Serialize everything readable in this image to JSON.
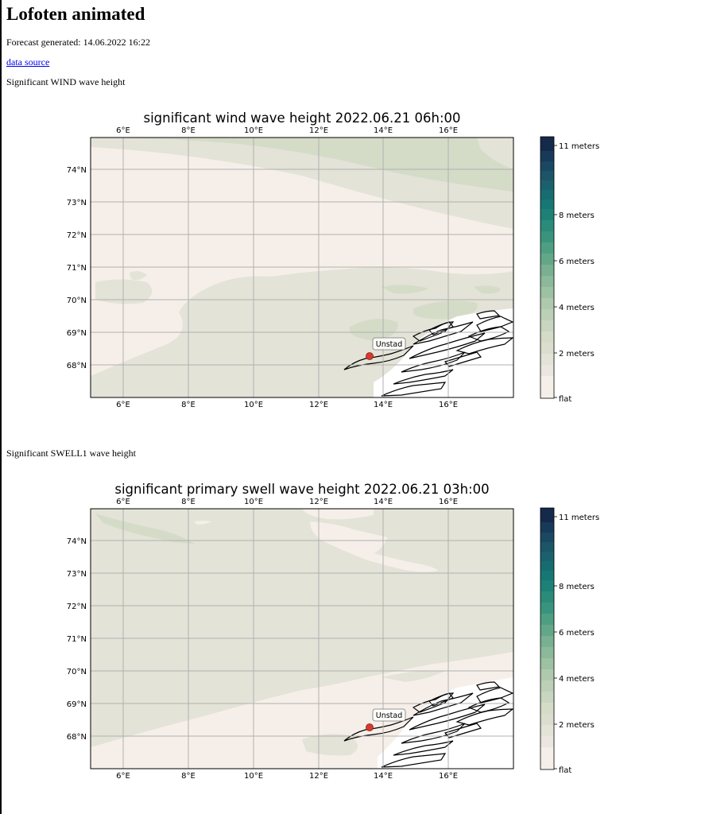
{
  "page": {
    "title": "Lofoten animated",
    "forecast_generated": "Forecast generated: 14.06.2022 16:22",
    "data_source_link": "data source"
  },
  "sections": [
    {
      "heading": "Significant WIND wave height",
      "chart_title": "significant wind wave height 2022.06.21 06h:00",
      "marker_label": "Unstad"
    },
    {
      "heading": "Significant SWELL1 wave height",
      "chart_title": "significant primary swell wave height 2022.06.21 03h:00",
      "marker_label": "Unstad"
    }
  ],
  "chart_data": [
    {
      "type": "heatmap",
      "title": "significant wind wave height 2022.06.21 06h:00",
      "x_ticks": [
        "6°E",
        "8°E",
        "10°E",
        "12°E",
        "14°E",
        "16°E"
      ],
      "y_ticks": [
        "74°N",
        "73°N",
        "72°N",
        "71°N",
        "70°N",
        "69°N",
        "68°N"
      ],
      "xlim": [
        5,
        18
      ],
      "ylim": [
        67,
        75
      ],
      "grid": true,
      "colorbar_labels": [
        "11 meters",
        "8 meters",
        "6 meters",
        "4 meters",
        "2 meters",
        "flat"
      ],
      "colorbar_values": [
        11,
        8,
        6,
        4,
        2,
        0
      ],
      "marker": {
        "label": "Unstad",
        "lon": 13.55,
        "lat": 68.27
      }
    },
    {
      "type": "heatmap",
      "title": "significant primary swell wave height 2022.06.21 03h:00",
      "x_ticks": [
        "6°E",
        "8°E",
        "10°E",
        "12°E",
        "14°E",
        "16°E"
      ],
      "y_ticks": [
        "74°N",
        "73°N",
        "72°N",
        "71°N",
        "70°N",
        "69°N",
        "68°N"
      ],
      "xlim": [
        5,
        18
      ],
      "ylim": [
        67,
        75
      ],
      "grid": true,
      "colorbar_labels": [
        "11 meters",
        "8 meters",
        "6 meters",
        "4 meters",
        "2 meters",
        "flat"
      ],
      "colorbar_values": [
        11,
        8,
        6,
        4,
        2,
        0
      ],
      "marker": {
        "label": "Unstad",
        "lon": 13.55,
        "lat": 68.27
      }
    }
  ],
  "colors": {
    "flat": "#f6efe9",
    "low1": "#e3e3d8",
    "low2": "#d4dcc8",
    "max": "#15294a",
    "marker": "#d43b2e",
    "link": "#0000ee"
  }
}
